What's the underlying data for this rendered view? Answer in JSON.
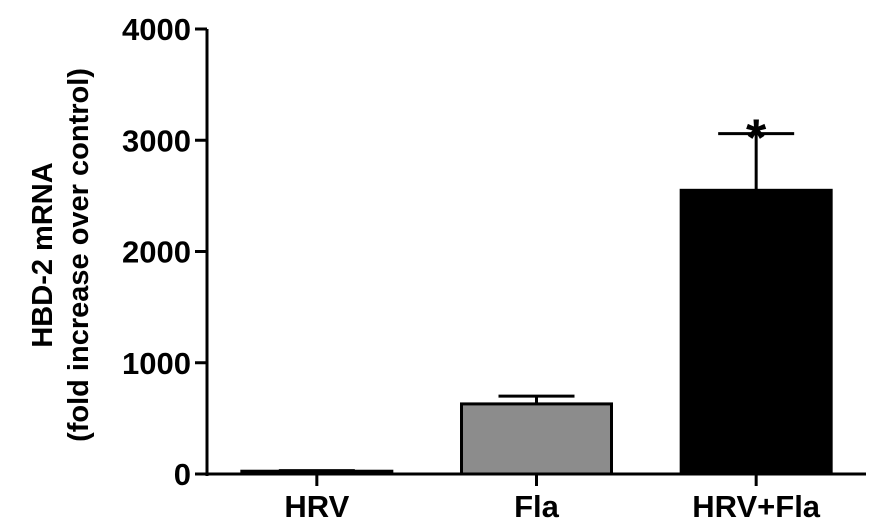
{
  "chart_data": {
    "type": "bar",
    "title": "",
    "xlabel": "",
    "ylabel": [
      "HBD-2 mRNA",
      "(fold increase over control)"
    ],
    "categories": [
      "HRV",
      "Fla",
      "HRV+Fla"
    ],
    "values": [
      25,
      630,
      2550
    ],
    "errors": [
      5,
      70,
      510
    ],
    "bar_colors": [
      "#ffffff",
      "#8c8c8c",
      "#000000"
    ],
    "ylim": [
      0,
      4000
    ],
    "yticks": [
      0,
      1000,
      2000,
      3000,
      4000
    ],
    "ytick_labels": [
      "0",
      "1000",
      "2000",
      "3000",
      "4000"
    ],
    "annotations": [
      {
        "category": "HRV+Fla",
        "text": "*"
      }
    ],
    "grid": false,
    "legend": "none"
  }
}
